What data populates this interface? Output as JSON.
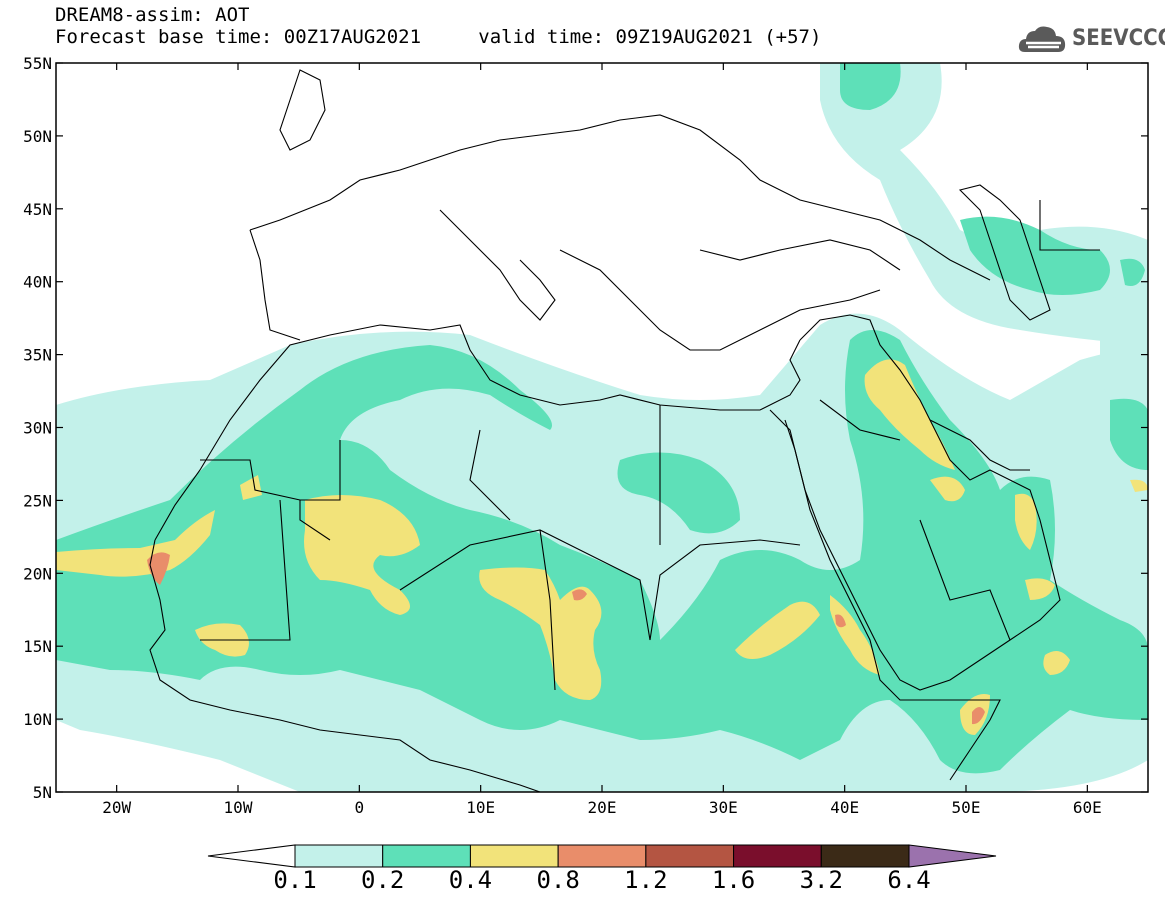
{
  "header": {
    "title": "DREAM8-assim: AOT",
    "base_time_label": "Forecast base time: 00Z17AUG2021",
    "valid_time_label": "valid time: 09Z19AUG2021 (+57)"
  },
  "logo": {
    "text": "SEEVCCC",
    "icon": "cloud-logo-icon"
  },
  "map": {
    "projection": "equirectangular",
    "lon_range": [
      -25,
      65
    ],
    "lat_range": [
      5,
      55
    ],
    "lat_ticks": [
      "5N",
      "10N",
      "15N",
      "20N",
      "25N",
      "30N",
      "35N",
      "40N",
      "45N",
      "50N",
      "55N"
    ],
    "lon_ticks": [
      "20W",
      "10W",
      "0",
      "10E",
      "20E",
      "30E",
      "40E",
      "50E",
      "60E"
    ]
  },
  "legend": {
    "labels": [
      "0.1",
      "0.2",
      "0.4",
      "0.8",
      "1.2",
      "1.6",
      "3.2",
      "6.4"
    ],
    "colors": [
      "#ffffff",
      "#c3f1ea",
      "#5ee0b8",
      "#f2e37a",
      "#e98d6a",
      "#b45542",
      "#7a0e2c",
      "#3b2a17",
      "#9b72ad"
    ]
  }
}
